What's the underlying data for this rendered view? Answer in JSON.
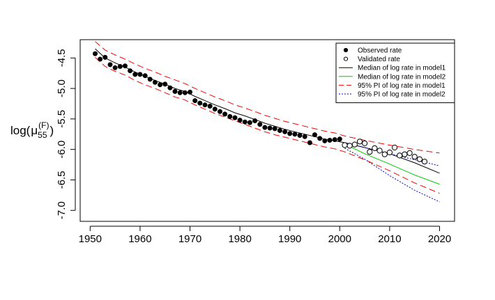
{
  "chart_data": {
    "type": "line",
    "title": "",
    "xlabel": "",
    "ylabel": {
      "base": "log(",
      "symbol": "μ",
      "subscript": "55",
      "superscript": "(F)",
      "close": ")"
    },
    "xlim": [
      1948,
      2023
    ],
    "ylim": [
      -7.18,
      -4.2
    ],
    "x_ticks": [
      1950,
      1960,
      1970,
      1980,
      1990,
      2000,
      2010,
      2020
    ],
    "y_ticks": [
      -7.0,
      -6.5,
      -6.0,
      -5.5,
      -5.0,
      -4.5
    ],
    "y_tick_labels": [
      "-7.0",
      "-6.5",
      "-6.0",
      "-5.5",
      "-5.0",
      "-4.5"
    ],
    "grid": false,
    "legend_position": "top-right",
    "legend": [
      {
        "label": "Observed rate",
        "symbol": "filled-circle",
        "color": "#000000"
      },
      {
        "label": "Validated rate",
        "symbol": "open-circle",
        "color": "#000000"
      },
      {
        "label": "Median of log rate in model1",
        "symbol": "solid-line",
        "color": "#000000"
      },
      {
        "label": "Median of log rate in model2",
        "symbol": "solid-line",
        "color": "#00cc00"
      },
      {
        "label": "95% PI of log rate in model1",
        "symbol": "dashed-line",
        "color": "#ff0000"
      },
      {
        "label": "95% PI of log rate in model2",
        "symbol": "dotted-line",
        "color": "#0000cc"
      }
    ],
    "series": [
      {
        "name": "Observed rate",
        "kind": "points-filled",
        "color": "#000000",
        "x": [
          1951,
          1952,
          1953,
          1954,
          1955,
          1956,
          1957,
          1958,
          1959,
          1960,
          1961,
          1962,
          1963,
          1964,
          1965,
          1966,
          1967,
          1968,
          1969,
          1970,
          1971,
          1972,
          1973,
          1974,
          1975,
          1976,
          1977,
          1978,
          1979,
          1980,
          1981,
          1982,
          1983,
          1984,
          1985,
          1986,
          1987,
          1988,
          1989,
          1990,
          1991,
          1992,
          1993,
          1994,
          1995,
          1996,
          1997,
          1998,
          1999,
          2000
        ],
        "y": [
          -4.43,
          -4.52,
          -4.49,
          -4.61,
          -4.66,
          -4.64,
          -4.63,
          -4.71,
          -4.77,
          -4.77,
          -4.79,
          -4.85,
          -4.9,
          -4.94,
          -4.93,
          -4.99,
          -5.05,
          -5.07,
          -5.07,
          -5.06,
          -5.2,
          -5.24,
          -5.27,
          -5.29,
          -5.34,
          -5.38,
          -5.42,
          -5.46,
          -5.48,
          -5.52,
          -5.55,
          -5.56,
          -5.53,
          -5.59,
          -5.64,
          -5.65,
          -5.66,
          -5.69,
          -5.71,
          -5.74,
          -5.75,
          -5.77,
          -5.79,
          -5.89,
          -5.76,
          -5.82,
          -5.86,
          -5.85,
          -5.84,
          -5.83
        ]
      },
      {
        "name": "Validated rate",
        "kind": "points-open",
        "color": "#000000",
        "x": [
          2001,
          2002,
          2003,
          2004,
          2005,
          2006,
          2007,
          2008,
          2009,
          2010,
          2011,
          2012,
          2013,
          2014,
          2015,
          2016,
          2017
        ],
        "y": [
          -5.93,
          -5.94,
          -5.92,
          -5.87,
          -5.9,
          -6.04,
          -5.98,
          -6.02,
          -6.08,
          -6.05,
          -5.97,
          -6.1,
          -6.08,
          -6.06,
          -6.12,
          -6.16,
          -6.2
        ]
      },
      {
        "name": "Median of log rate in model1",
        "kind": "line",
        "color": "#000000",
        "dash": "",
        "x": [
          1951,
          1953,
          1955,
          1957,
          1959,
          1961,
          1963,
          1965,
          1967,
          1969,
          1971,
          1973,
          1975,
          1977,
          1979,
          1981,
          1983,
          1985,
          1987,
          1989,
          1991,
          1993,
          1995,
          1997,
          1999,
          2001,
          2005,
          2010,
          2015,
          2020
        ],
        "y": [
          -4.35,
          -4.5,
          -4.58,
          -4.65,
          -4.73,
          -4.8,
          -4.87,
          -4.93,
          -5,
          -5.05,
          -5.13,
          -5.2,
          -5.27,
          -5.33,
          -5.4,
          -5.45,
          -5.51,
          -5.57,
          -5.62,
          -5.67,
          -5.71,
          -5.75,
          -5.79,
          -5.83,
          -5.86,
          -5.89,
          -5.97,
          -6.07,
          -6.22,
          -6.39
        ]
      },
      {
        "name": "Median of log rate in model2",
        "kind": "line",
        "color": "#00cc00",
        "dash": "",
        "x": [
          2001,
          2005,
          2010,
          2015,
          2020
        ],
        "y": [
          -5.91,
          -6.07,
          -6.24,
          -6.42,
          -6.57
        ]
      },
      {
        "name": "95% PI of log rate in model1 (upper)",
        "kind": "line",
        "color": "#ff0000",
        "dash": "9 5",
        "x": [
          1951,
          1953,
          1955,
          1957,
          1959,
          1961,
          1963,
          1965,
          1967,
          1969,
          1971,
          1973,
          1975,
          1977,
          1979,
          1981,
          1983,
          1985,
          1987,
          1989,
          1991,
          1993,
          1995,
          1997,
          1999,
          2001,
          2005,
          2010,
          2015,
          2020
        ],
        "y": [
          -4.23,
          -4.37,
          -4.45,
          -4.52,
          -4.6,
          -4.67,
          -4.73,
          -4.8,
          -4.86,
          -4.92,
          -5.0,
          -5.07,
          -5.14,
          -5.2,
          -5.27,
          -5.32,
          -5.38,
          -5.44,
          -5.49,
          -5.54,
          -5.58,
          -5.62,
          -5.66,
          -5.7,
          -5.73,
          -5.78,
          -5.85,
          -5.93,
          -6.0,
          -6.06
        ]
      },
      {
        "name": "95% PI of log rate in model1 (lower)",
        "kind": "line",
        "color": "#ff0000",
        "dash": "9 5",
        "x": [
          1951,
          1953,
          1955,
          1957,
          1959,
          1961,
          1963,
          1965,
          1967,
          1969,
          1971,
          1973,
          1975,
          1977,
          1979,
          1981,
          1983,
          1985,
          1987,
          1989,
          1991,
          1993,
          1995,
          1997,
          1999,
          2001,
          2005,
          2010,
          2015,
          2020
        ],
        "y": [
          -4.49,
          -4.64,
          -4.72,
          -4.78,
          -4.87,
          -4.94,
          -5.0,
          -5.07,
          -5.14,
          -5.19,
          -5.27,
          -5.34,
          -5.41,
          -5.47,
          -5.53,
          -5.59,
          -5.65,
          -5.71,
          -5.76,
          -5.8,
          -5.84,
          -5.88,
          -5.92,
          -5.96,
          -5.99,
          -6.04,
          -6.17,
          -6.35,
          -6.55,
          -6.72
        ]
      },
      {
        "name": "95% PI of log rate in model2 (upper)",
        "kind": "line",
        "color": "#0000cc",
        "dash": "2 2",
        "x": [
          2001,
          2005,
          2010,
          2015,
          2020
        ],
        "y": [
          -5.89,
          -5.97,
          -6.07,
          -6.17,
          -6.27
        ]
      },
      {
        "name": "95% PI of log rate in model2 (lower)",
        "kind": "line",
        "color": "#0000cc",
        "dash": "2 2",
        "x": [
          2001,
          2005,
          2010,
          2015,
          2020
        ],
        "y": [
          -5.98,
          -6.16,
          -6.43,
          -6.67,
          -6.86
        ]
      }
    ]
  }
}
